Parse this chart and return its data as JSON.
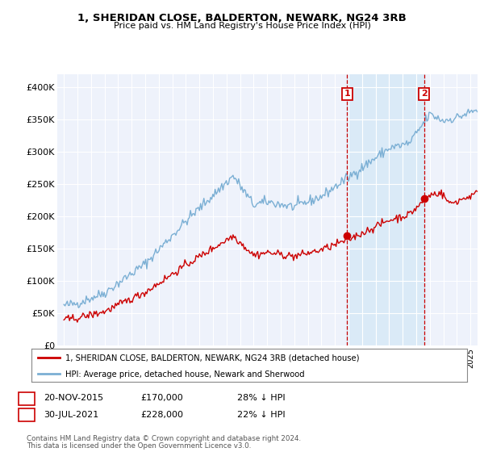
{
  "title": "1, SHERIDAN CLOSE, BALDERTON, NEWARK, NG24 3RB",
  "subtitle": "Price paid vs. HM Land Registry's House Price Index (HPI)",
  "ylabel_ticks": [
    "£0",
    "£50K",
    "£100K",
    "£150K",
    "£200K",
    "£250K",
    "£300K",
    "£350K",
    "£400K"
  ],
  "ytick_values": [
    0,
    50000,
    100000,
    150000,
    200000,
    250000,
    300000,
    350000,
    400000
  ],
  "ylim": [
    0,
    420000
  ],
  "xlim_start": 1994.5,
  "xlim_end": 2025.5,
  "hpi_color": "#7bafd4",
  "hpi_fill_color": "#cde0f0",
  "price_color": "#cc0000",
  "vline_color": "#cc0000",
  "shade_color": "#daeaf7",
  "marker1_year": 2015.9,
  "marker2_year": 2021.58,
  "marker1_price": 170000,
  "marker2_price": 228000,
  "legend1": "1, SHERIDAN CLOSE, BALDERTON, NEWARK, NG24 3RB (detached house)",
  "legend2": "HPI: Average price, detached house, Newark and Sherwood",
  "footnote_line1": "Contains HM Land Registry data © Crown copyright and database right 2024.",
  "footnote_line2": "This data is licensed under the Open Government Licence v3.0.",
  "background_color": "#ffffff",
  "plot_bg_color": "#eef2fb"
}
